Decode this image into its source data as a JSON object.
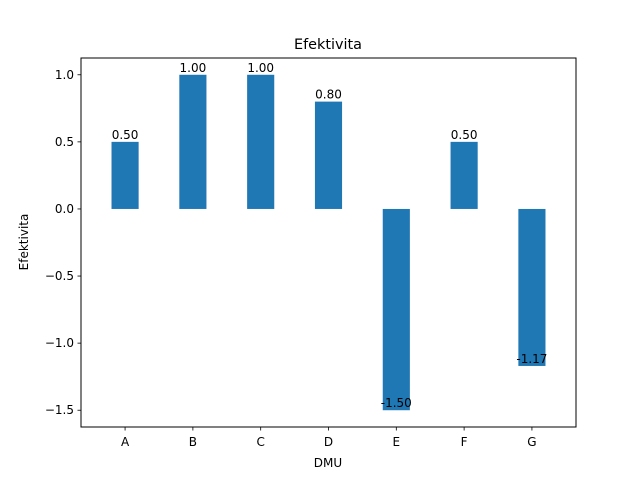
{
  "chart_data": {
    "type": "bar",
    "title": "Efektivita",
    "xlabel": "DMU",
    "ylabel": "Efektivita",
    "categories": [
      "A",
      "B",
      "C",
      "D",
      "E",
      "F",
      "G"
    ],
    "values": [
      0.5,
      1.0,
      1.0,
      0.8,
      -1.5,
      0.5,
      -1.17
    ],
    "data_labels": [
      "0.50",
      "1.00",
      "1.00",
      "0.80",
      "-1.50",
      "0.50",
      "-1.17"
    ],
    "ylim": [
      -1.625,
      1.125
    ],
    "yticks": [
      -1.5,
      -1.0,
      -0.5,
      0.0,
      0.5,
      1.0
    ],
    "ytick_labels": [
      "−1.5",
      "−1.0",
      "−0.5",
      "0.0",
      "0.5",
      "1.0"
    ],
    "grid": false,
    "bar_color": "#1f77b4"
  }
}
